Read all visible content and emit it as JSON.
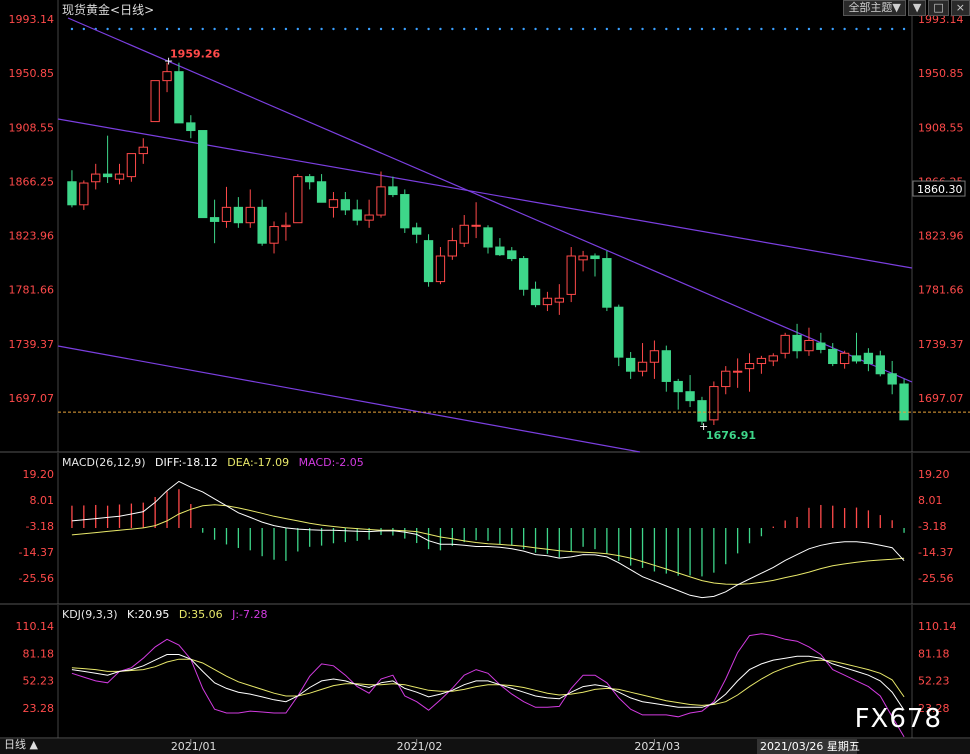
{
  "header": {
    "symbol": "现货黄金",
    "timeframe": "<日线>"
  },
  "toolbar": {
    "theme_label": "全部主题▼",
    "btn_down": "▼",
    "btn_restore": "□",
    "btn_close": "×"
  },
  "price_axis": {
    "ticks": [
      1993.14,
      1950.85,
      1908.55,
      1866.25,
      1823.96,
      1781.66,
      1739.37,
      1697.07
    ],
    "current": "1860.30"
  },
  "annotations": {
    "high_label": "1959.26",
    "low_label": "1676.91"
  },
  "macd": {
    "title": "MACD(26,12,9)",
    "diff": "DIFF:-18.12",
    "dea": "DEA:-17.09",
    "macd": "MACD:-2.05",
    "ticks": [
      "19.20",
      "8.01",
      "-3.18",
      "-14.37",
      "-25.56"
    ]
  },
  "kdj": {
    "title": "KDJ(9,3,3)",
    "k": "K:20.95",
    "d": "D:35.06",
    "j": "J:-7.28",
    "ticks": [
      "110.14",
      "81.18",
      "52.23",
      "23.28"
    ]
  },
  "x_axis": {
    "labels": [
      "2021/01",
      "2021/02",
      "2021/03"
    ],
    "cursor_label": "2021/03/26 星期五"
  },
  "footer": {
    "tab": "日线",
    "logo": "FX678"
  },
  "colors": {
    "up": "#ff4a4a",
    "down": "#3ed68a",
    "trend": "#7b3fe0",
    "axis_text": "#ff4a4a",
    "diff": "#ffffff",
    "dea": "#e8e86a",
    "j": "#d23be0"
  },
  "chart_data": {
    "type": "candlestick",
    "candles": [
      [
        1866,
        1875,
        1846,
        1848
      ],
      [
        1848,
        1867,
        1844,
        1865
      ],
      [
        1866,
        1880,
        1860,
        1872
      ],
      [
        1872,
        1902,
        1865,
        1870
      ],
      [
        1868,
        1880,
        1864,
        1872
      ],
      [
        1870,
        1886,
        1866,
        1888
      ],
      [
        1888,
        1900,
        1880,
        1893
      ],
      [
        1913,
        1945,
        1913,
        1945
      ],
      [
        1945,
        1959,
        1936,
        1952
      ],
      [
        1952,
        1959,
        1912,
        1912
      ],
      [
        1912,
        1918,
        1900,
        1906
      ],
      [
        1906,
        1906,
        1838,
        1838
      ],
      [
        1838,
        1852,
        1818,
        1835
      ],
      [
        1835,
        1862,
        1830,
        1846
      ],
      [
        1846,
        1854,
        1830,
        1834
      ],
      [
        1834,
        1860,
        1830,
        1846
      ],
      [
        1846,
        1852,
        1816,
        1818
      ],
      [
        1818,
        1835,
        1810,
        1831
      ],
      [
        1831,
        1842,
        1820,
        1832
      ],
      [
        1834,
        1872,
        1834,
        1870
      ],
      [
        1870,
        1872,
        1860,
        1866
      ],
      [
        1866,
        1872,
        1852,
        1850
      ],
      [
        1846,
        1858,
        1838,
        1852
      ],
      [
        1852,
        1858,
        1840,
        1844
      ],
      [
        1844,
        1852,
        1832,
        1836
      ],
      [
        1836,
        1852,
        1830,
        1840
      ],
      [
        1840,
        1874,
        1838,
        1862
      ],
      [
        1862,
        1870,
        1854,
        1856
      ],
      [
        1856,
        1860,
        1826,
        1830
      ],
      [
        1830,
        1834,
        1818,
        1825
      ],
      [
        1820,
        1825,
        1784,
        1788
      ],
      [
        1788,
        1815,
        1786,
        1808
      ],
      [
        1808,
        1830,
        1805,
        1820
      ],
      [
        1818,
        1840,
        1815,
        1832
      ],
      [
        1832,
        1850,
        1822,
        1832
      ],
      [
        1830,
        1832,
        1810,
        1815
      ],
      [
        1815,
        1822,
        1808,
        1809
      ],
      [
        1812,
        1815,
        1804,
        1806
      ],
      [
        1806,
        1808,
        1777,
        1782
      ],
      [
        1782,
        1788,
        1768,
        1770
      ],
      [
        1770,
        1780,
        1765,
        1775
      ],
      [
        1772,
        1786,
        1762,
        1775
      ],
      [
        1778,
        1815,
        1772,
        1808
      ],
      [
        1805,
        1812,
        1796,
        1808
      ],
      [
        1808,
        1810,
        1792,
        1806
      ],
      [
        1806,
        1812,
        1765,
        1768
      ],
      [
        1768,
        1770,
        1722,
        1729
      ],
      [
        1728,
        1733,
        1712,
        1718
      ],
      [
        1718,
        1740,
        1714,
        1725
      ],
      [
        1725,
        1742,
        1712,
        1734
      ],
      [
        1734,
        1738,
        1702,
        1710
      ],
      [
        1710,
        1712,
        1688,
        1702
      ],
      [
        1702,
        1715,
        1690,
        1695
      ],
      [
        1695,
        1698,
        1676,
        1679
      ],
      [
        1680,
        1710,
        1676,
        1706
      ],
      [
        1706,
        1722,
        1700,
        1718
      ],
      [
        1718,
        1728,
        1705,
        1718
      ],
      [
        1720,
        1732,
        1702,
        1724
      ],
      [
        1724,
        1730,
        1716,
        1728
      ],
      [
        1726,
        1732,
        1722,
        1730
      ],
      [
        1732,
        1748,
        1728,
        1746
      ],
      [
        1746,
        1755,
        1728,
        1734
      ],
      [
        1734,
        1752,
        1730,
        1742
      ],
      [
        1740,
        1748,
        1732,
        1735
      ],
      [
        1735,
        1740,
        1722,
        1724
      ],
      [
        1724,
        1734,
        1720,
        1732
      ],
      [
        1730,
        1748,
        1724,
        1726
      ],
      [
        1732,
        1736,
        1718,
        1724
      ],
      [
        1730,
        1734,
        1714,
        1716
      ],
      [
        1716,
        1726,
        1700,
        1708
      ],
      [
        1708,
        1712,
        1680,
        1680
      ]
    ],
    "x_labels": [
      "2021/01",
      "2021/02",
      "2021/03"
    ],
    "y_ticks": [
      1993.14,
      1950.85,
      1908.55,
      1866.25,
      1823.96,
      1781.66,
      1739.37,
      1697.07
    ],
    "current_price": 1860.3,
    "high": 1959.26,
    "low": 1676.91,
    "macd_hist": [
      9.5,
      9.6,
      9.8,
      9.5,
      10,
      10.4,
      10.8,
      13.2,
      15.6,
      16.5,
      10.2,
      -2,
      -5,
      -7,
      -8.5,
      -9.5,
      -12,
      -13.5,
      -14,
      -10,
      -8,
      -7.5,
      -6.5,
      -6,
      -5.5,
      -5,
      -3,
      -3.2,
      -4.5,
      -6.4,
      -9,
      -9.5,
      -7.6,
      -6,
      -5.2,
      -5.5,
      -6.8,
      -7.5,
      -9,
      -10.5,
      -11,
      -12.5,
      -10,
      -8,
      -9,
      -11,
      -14,
      -16,
      -17,
      -18.5,
      -19.4,
      -20.3,
      -20.2,
      -20.6,
      -19,
      -15.4,
      -10.8,
      -6.5,
      -3.5,
      0.6,
      3.2,
      4.7,
      8.6,
      9.8,
      9.5,
      8.5,
      8.7,
      7.5,
      5.5,
      3.3,
      -2.05
    ],
    "dif": [
      -1,
      -0.5,
      0,
      0.5,
      1,
      2,
      3,
      7,
      12,
      16,
      13.5,
      11.5,
      8.5,
      5.5,
      2.5,
      0.5,
      -1.5,
      -3,
      -4,
      -4.5,
      -4.8,
      -5,
      -5,
      -5.2,
      -5.4,
      -5.6,
      -5.3,
      -5.2,
      -5.8,
      -6.8,
      -9.5,
      -11,
      -11,
      -11.5,
      -12,
      -12,
      -12.3,
      -13,
      -14,
      -15.5,
      -16,
      -17,
      -16.5,
      -15.5,
      -15.6,
      -16.5,
      -19,
      -22,
      -25,
      -27,
      -29,
      -31,
      -33,
      -34,
      -33.5,
      -31.5,
      -28.5,
      -26,
      -23.5,
      -21,
      -18,
      -15.5,
      -13,
      -11.5,
      -10.5,
      -10,
      -10,
      -10.5,
      -11.5,
      -12.5,
      -18.12
    ],
    "dea": [
      -7,
      -6.5,
      -6,
      -5.5,
      -5,
      -4.5,
      -4,
      -3,
      -1,
      2,
      4,
      5.5,
      6,
      5.5,
      4.6,
      3.5,
      2.3,
      1,
      0,
      -1,
      -2,
      -2.8,
      -3.4,
      -3.9,
      -4.3,
      -4.7,
      -5,
      -5,
      -5.2,
      -5.6,
      -6.7,
      -7.9,
      -8.7,
      -9.6,
      -10.3,
      -10.8,
      -11.1,
      -11.5,
      -11.9,
      -12.6,
      -13.2,
      -13.8,
      -14.2,
      -14.5,
      -14.7,
      -15.1,
      -15.9,
      -17,
      -18.5,
      -20.1,
      -21.7,
      -23.4,
      -25.1,
      -26.7,
      -27.7,
      -28.2,
      -28.3,
      -28,
      -27.4,
      -26.6,
      -25.4,
      -24.3,
      -23,
      -21.5,
      -20.3,
      -19.5,
      -18.8,
      -18.2,
      -17.8,
      -17.5,
      -17.09
    ],
    "k": [
      64,
      62,
      60,
      58,
      62,
      64,
      68,
      74,
      80,
      80,
      75,
      62,
      50,
      44,
      40,
      38,
      35,
      32,
      30,
      36,
      45,
      52,
      54,
      52,
      48,
      45,
      50,
      52,
      44,
      40,
      35,
      38,
      42,
      48,
      52,
      52,
      48,
      44,
      40,
      36,
      34,
      33,
      40,
      46,
      48,
      46,
      40,
      34,
      30,
      28,
      26,
      24,
      24,
      24,
      28,
      38,
      52,
      64,
      70,
      74,
      76,
      78,
      78,
      76,
      70,
      66,
      62,
      58,
      52,
      40,
      20.95
    ],
    "d": [
      66,
      65,
      64,
      62,
      62,
      63,
      64,
      67,
      72,
      75,
      75,
      71,
      64,
      57,
      51,
      47,
      43,
      39,
      36,
      36,
      39,
      43,
      47,
      49,
      49,
      48,
      48,
      49,
      48,
      45,
      42,
      41,
      41,
      43,
      46,
      48,
      48,
      47,
      45,
      42,
      39,
      37,
      38,
      40,
      43,
      44,
      43,
      40,
      37,
      34,
      31,
      29,
      27,
      26,
      27,
      30,
      37,
      46,
      54,
      61,
      66,
      70,
      73,
      74,
      73,
      70,
      67,
      64,
      60,
      53,
      35.06
    ],
    "j": [
      60,
      56,
      52,
      50,
      62,
      66,
      76,
      88,
      96,
      90,
      75,
      44,
      22,
      18,
      18,
      20,
      19,
      18,
      18,
      36,
      57,
      70,
      68,
      58,
      46,
      39,
      54,
      58,
      36,
      30,
      21,
      32,
      44,
      58,
      64,
      60,
      48,
      38,
      30,
      24,
      24,
      25,
      44,
      58,
      58,
      50,
      34,
      22,
      16,
      16,
      16,
      14,
      18,
      20,
      30,
      54,
      82,
      100,
      102,
      100,
      96,
      94,
      88,
      80,
      64,
      58,
      52,
      46,
      36,
      14,
      -7.28
    ]
  }
}
